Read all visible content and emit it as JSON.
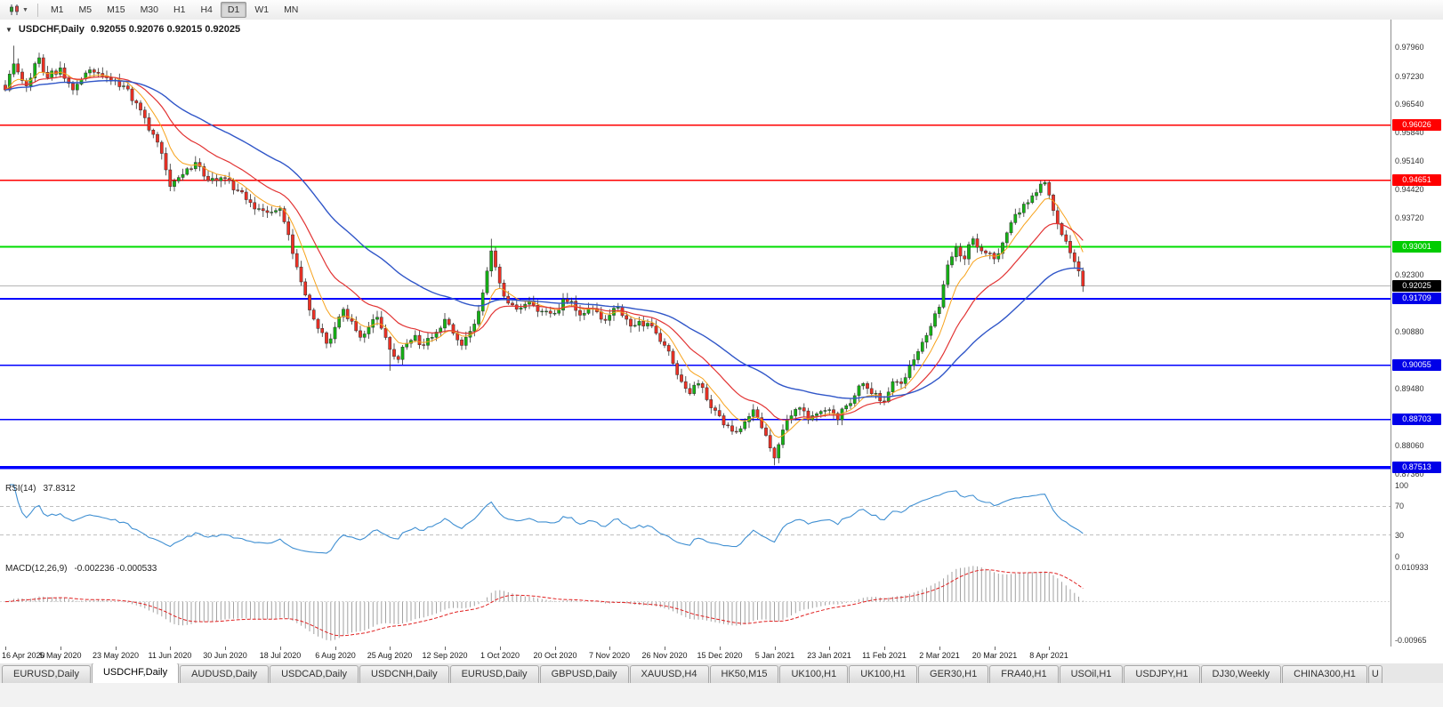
{
  "toolbar": {
    "timeframes": [
      "M1",
      "M5",
      "M15",
      "M30",
      "H1",
      "H4",
      "D1",
      "W1",
      "MN"
    ],
    "active_timeframe": "D1",
    "chart_type_icon": "candlestick-chart"
  },
  "chart": {
    "collapse_icon": "▼",
    "symbol": "USDCHF,Daily",
    "ohlc": "0.92055 0.92076 0.92015 0.92025"
  },
  "indicators": {
    "rsi": {
      "label": "RSI(14)",
      "value": "37.8312",
      "period": 14,
      "levels": [
        70,
        30
      ],
      "axis_ticks": [
        100,
        70,
        30,
        0
      ],
      "line_color": "#3f8fd2"
    },
    "macd": {
      "label": "MACD(12,26,9)",
      "values": "-0.002236 -0.000533",
      "params": [
        12,
        26,
        9
      ],
      "axis_max_label": "0.010933",
      "axis_min_label": "-0.00965",
      "histogram_color": "#a2a2a2",
      "signal_color": "#e02020"
    }
  },
  "chart_data": {
    "type": "candlestick",
    "symbol": "USDCHF",
    "timeframe": "Daily",
    "num_candles": 256,
    "x_label_step": 13,
    "x_labels": [
      "16 Apr 2020",
      "5 May 2020",
      "23 May 2020",
      "11 Jun 2020",
      "30 Jun 2020",
      "18 Jul 2020",
      "6 Aug 2020",
      "25 Aug 2020",
      "12 Sep 2020",
      "1 Oct 2020",
      "20 Oct 2020",
      "7 Nov 2020",
      "26 Nov 2020",
      "15 Dec 2020",
      "5 Jan 2021",
      "23 Jan 2021",
      "11 Feb 2021",
      "2 Mar 2021",
      "20 Mar 2021",
      "8 Apr 2021"
    ],
    "y_axis": {
      "min": 0.8722,
      "max": 0.9865,
      "ticks": [
        0.9796,
        0.9723,
        0.9654,
        0.9584,
        0.9514,
        0.9442,
        0.9372,
        0.923,
        0.9088,
        0.8948,
        0.8806,
        0.8736
      ]
    },
    "current_price": 0.92025,
    "price_badges": [
      {
        "value": "0.96026",
        "price": 0.96026,
        "color": "#ff0000"
      },
      {
        "value": "0.94651",
        "price": 0.94651,
        "color": "#ff0000"
      },
      {
        "value": "0.93001",
        "price": 0.93001,
        "color": "#00cc00"
      },
      {
        "value": "0.92025",
        "price": 0.92025,
        "color": "#000000"
      },
      {
        "value": "0.91709",
        "price": 0.91709,
        "color": "#0000e8"
      },
      {
        "value": "0.90055",
        "price": 0.90055,
        "color": "#0000e8"
      },
      {
        "value": "0.88703",
        "price": 0.88703,
        "color": "#0000e8"
      },
      {
        "value": "0.87513",
        "price": 0.87513,
        "color": "#0000e8"
      }
    ],
    "levels": [
      {
        "price": 0.96026,
        "color": "#ff0000",
        "width": 1.6
      },
      {
        "price": 0.94651,
        "color": "#ff0000",
        "width": 1.6
      },
      {
        "price": 0.93001,
        "color": "#00dd00",
        "width": 2
      },
      {
        "price": 0.91709,
        "color": "#0000ff",
        "width": 1.6
      },
      {
        "price": 0.90055,
        "color": "#0000ff",
        "width": 1.6
      },
      {
        "price": 0.88703,
        "color": "#0000ff",
        "width": 1.6
      },
      {
        "price": 0.87513,
        "color": "#0000ff",
        "width": 3.5
      }
    ],
    "moving_averages": [
      {
        "period": 8,
        "color": "#f7a21b",
        "width": 1
      },
      {
        "period": 20,
        "color": "#e23434",
        "width": 1.2
      },
      {
        "period": 48,
        "color": "#3056c8",
        "width": 1.4
      }
    ],
    "candle_colors": {
      "bull": "#15b215",
      "bear": "#ee3024",
      "wick": "#303030",
      "outline": "#303030"
    },
    "anchors": [
      [
        0,
        0.969
      ],
      [
        2,
        0.9755
      ],
      [
        5,
        0.97
      ],
      [
        8,
        0.977
      ],
      [
        10,
        0.972
      ],
      [
        13,
        0.9745
      ],
      [
        16,
        0.969
      ],
      [
        20,
        0.974
      ],
      [
        24,
        0.972
      ],
      [
        28,
        0.97
      ],
      [
        32,
        0.964
      ],
      [
        36,
        0.956
      ],
      [
        39,
        0.945
      ],
      [
        42,
        0.948
      ],
      [
        45,
        0.951
      ],
      [
        48,
        0.9465
      ],
      [
        52,
        0.947
      ],
      [
        55,
        0.944
      ],
      [
        58,
        0.941
      ],
      [
        61,
        0.939
      ],
      [
        65,
        0.9395
      ],
      [
        67,
        0.933
      ],
      [
        69,
        0.925
      ],
      [
        71,
        0.918
      ],
      [
        73,
        0.912
      ],
      [
        76,
        0.906
      ],
      [
        78,
        0.91
      ],
      [
        80,
        0.9145
      ],
      [
        82,
        0.9115
      ],
      [
        84,
        0.9075
      ],
      [
        86,
        0.91
      ],
      [
        88,
        0.9125
      ],
      [
        91,
        0.9045
      ],
      [
        93,
        0.902
      ],
      [
        95,
        0.906
      ],
      [
        97,
        0.908
      ],
      [
        99,
        0.9055
      ],
      [
        101,
        0.9075
      ],
      [
        104,
        0.912
      ],
      [
        106,
        0.9085
      ],
      [
        108,
        0.9055
      ],
      [
        110,
        0.909
      ],
      [
        112,
        0.914
      ],
      [
        114,
        0.924
      ],
      [
        115,
        0.929
      ],
      [
        116,
        0.925
      ],
      [
        117,
        0.921
      ],
      [
        119,
        0.916
      ],
      [
        121,
        0.9145
      ],
      [
        124,
        0.9165
      ],
      [
        127,
        0.914
      ],
      [
        130,
        0.9135
      ],
      [
        132,
        0.917
      ],
      [
        134,
        0.9165
      ],
      [
        136,
        0.913
      ],
      [
        139,
        0.9145
      ],
      [
        141,
        0.912
      ],
      [
        143,
        0.913
      ],
      [
        145,
        0.915
      ],
      [
        147,
        0.912
      ],
      [
        149,
        0.9105
      ],
      [
        152,
        0.911
      ],
      [
        154,
        0.9085
      ],
      [
        156,
        0.9055
      ],
      [
        158,
        0.901
      ],
      [
        160,
        0.8965
      ],
      [
        162,
        0.8935
      ],
      [
        164,
        0.896
      ],
      [
        166,
        0.892
      ],
      [
        169,
        0.888
      ],
      [
        171,
        0.8855
      ],
      [
        173,
        0.884
      ],
      [
        175,
        0.8865
      ],
      [
        177,
        0.8895
      ],
      [
        179,
        0.885
      ],
      [
        181,
        0.88
      ],
      [
        182,
        0.8775
      ],
      [
        184,
        0.8845
      ],
      [
        186,
        0.888
      ],
      [
        188,
        0.89
      ],
      [
        190,
        0.887
      ],
      [
        192,
        0.8885
      ],
      [
        195,
        0.8895
      ],
      [
        197,
        0.887
      ],
      [
        199,
        0.8905
      ],
      [
        201,
        0.893
      ],
      [
        203,
        0.896
      ],
      [
        205,
        0.8935
      ],
      [
        208,
        0.8915
      ],
      [
        210,
        0.8965
      ],
      [
        212,
        0.896
      ],
      [
        214,
        0.9005
      ],
      [
        216,
        0.904
      ],
      [
        218,
        0.908
      ],
      [
        221,
        0.915
      ],
      [
        223,
        0.9255
      ],
      [
        225,
        0.93
      ],
      [
        227,
        0.927
      ],
      [
        229,
        0.932
      ],
      [
        231,
        0.929
      ],
      [
        234,
        0.927
      ],
      [
        236,
        0.931
      ],
      [
        238,
        0.936
      ],
      [
        240,
        0.9385
      ],
      [
        242,
        0.941
      ],
      [
        244,
        0.9435
      ],
      [
        246,
        0.946
      ],
      [
        248,
        0.939
      ],
      [
        250,
        0.933
      ],
      [
        252,
        0.9285
      ],
      [
        254,
        0.924
      ],
      [
        255,
        0.92025
      ]
    ],
    "wick_overrides": {
      "2": {
        "high": 0.98
      },
      "91": {
        "low": 0.8992
      },
      "115": {
        "high": 0.932
      },
      "182": {
        "low": 0.8757
      },
      "246": {
        "high": 0.94651
      }
    }
  },
  "tabs": [
    {
      "label": "EURUSD,Daily",
      "active": false
    },
    {
      "label": "USDCHF,Daily",
      "active": true
    },
    {
      "label": "AUDUSD,Daily",
      "active": false
    },
    {
      "label": "USDCAD,Daily",
      "active": false
    },
    {
      "label": "USDCNH,Daily",
      "active": false
    },
    {
      "label": "EURUSD,Daily",
      "active": false
    },
    {
      "label": "GBPUSD,Daily",
      "active": false
    },
    {
      "label": "XAUUSD,H4",
      "active": false
    },
    {
      "label": "HK50,M15",
      "active": false
    },
    {
      "label": "UK100,H1",
      "active": false
    },
    {
      "label": "UK100,H1",
      "active": false
    },
    {
      "label": "GER30,H1",
      "active": false
    },
    {
      "label": "FRA40,H1",
      "active": false
    },
    {
      "label": "USOil,H1",
      "active": false
    },
    {
      "label": "USDJPY,H1",
      "active": false
    },
    {
      "label": "DJ30,Weekly",
      "active": false
    },
    {
      "label": "CHINA300,H1",
      "active": false
    },
    {
      "label": "U",
      "active": false,
      "partial": true
    }
  ]
}
